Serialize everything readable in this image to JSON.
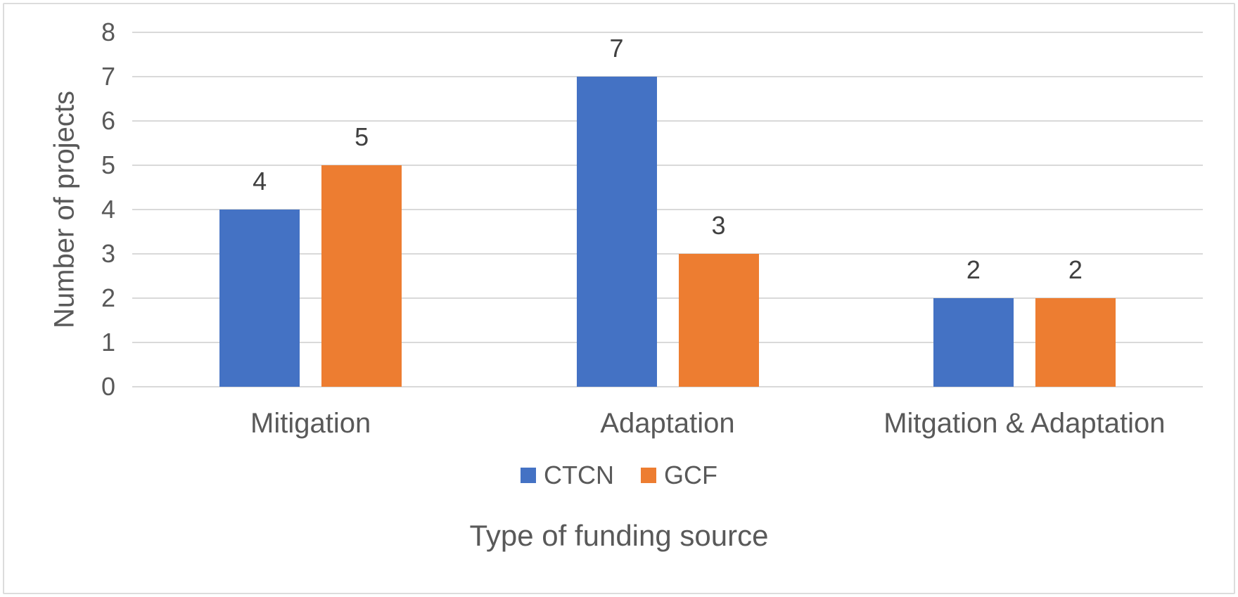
{
  "chart_data": {
    "type": "bar",
    "categories": [
      "Mitigation",
      "Adaptation",
      "Mitgation & Adaptation"
    ],
    "series": [
      {
        "name": "CTCN",
        "color": "#4472C4",
        "values": [
          4,
          7,
          2
        ]
      },
      {
        "name": "GCF",
        "color": "#ED7D31",
        "values": [
          5,
          3,
          2
        ]
      }
    ],
    "title": "",
    "xlabel": "Type of funding source",
    "ylabel": "Number of projects",
    "ylim": [
      0,
      8
    ],
    "yticks": [
      0,
      1,
      2,
      3,
      4,
      5,
      6,
      7,
      8
    ],
    "grid": true,
    "legend_position": "bottom",
    "data_labels": true
  },
  "colors": {
    "axis_text": "#595959",
    "data_label": "#404040",
    "gridline": "#D9D9D9",
    "frame_border": "#DCDCDC",
    "background": "#FFFFFF",
    "ctcn_blue": "#4472C4",
    "gcf_orange": "#ED7D31"
  }
}
